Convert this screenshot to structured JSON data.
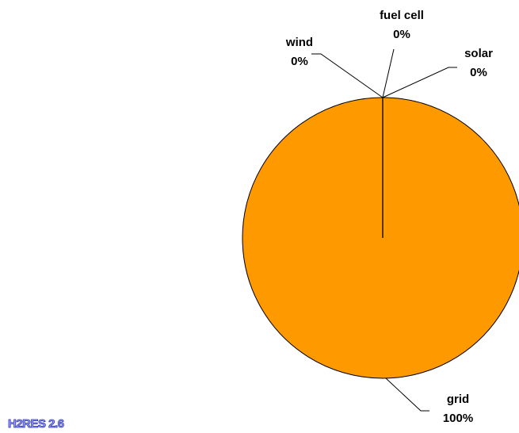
{
  "chart_data": {
    "type": "pie",
    "categories": [
      "grid",
      "wind",
      "fuel cell",
      "solar"
    ],
    "values": [
      100,
      0,
      0,
      0
    ],
    "value_labels": [
      "100%",
      "0%",
      "0%",
      "0%"
    ],
    "color": "#ff9900",
    "logo": "H2RES 2.6"
  }
}
